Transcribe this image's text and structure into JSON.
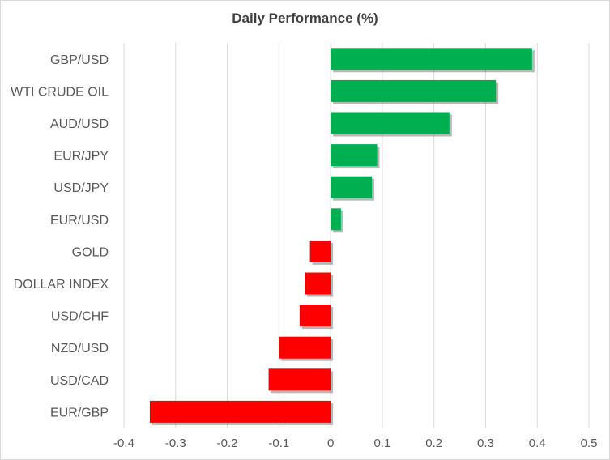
{
  "chart_data": {
    "type": "bar",
    "orientation": "horizontal",
    "title": "Daily Performance (%)",
    "xlabel": "",
    "ylabel": "",
    "categories": [
      "GBP/USD",
      "WTI CRUDE OIL",
      "AUD/USD",
      "EUR/JPY",
      "USD/JPY",
      "EUR/USD",
      "GOLD",
      "DOLLAR INDEX",
      "USD/CHF",
      "NZD/USD",
      "USD/CAD",
      "EUR/GBP"
    ],
    "values": [
      0.39,
      0.32,
      0.23,
      0.09,
      0.08,
      0.02,
      -0.04,
      -0.05,
      -0.06,
      -0.1,
      -0.12,
      -0.35
    ],
    "xlim": [
      -0.4,
      0.5
    ],
    "xticks": [
      "-0.4",
      "-0.3",
      "-0.2",
      "-0.1",
      "0",
      "0.1",
      "0.2",
      "0.3",
      "0.4",
      "0.5"
    ],
    "grid": "vertical",
    "legend": "none",
    "colors": {
      "positive": "#00b050",
      "negative": "#ff0000",
      "grid": "#d9d9d9",
      "text": "#595959"
    }
  }
}
